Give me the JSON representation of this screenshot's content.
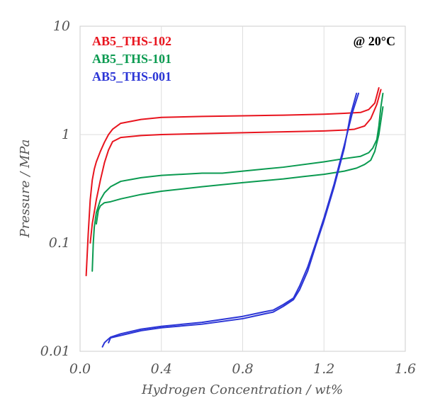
{
  "chart_data": {
    "type": "line",
    "title": "",
    "xlabel": "Hydrogen Concentration / wt%",
    "ylabel": "Pressure / MPa",
    "xlim": [
      0.0,
      1.6
    ],
    "ylim": [
      0.01,
      10
    ],
    "yscale": "log",
    "xticks": [
      "0.0",
      "0.4",
      "0.8",
      "1.2",
      "1.6"
    ],
    "yticks": [
      "0.01",
      "0.1",
      "1",
      "10"
    ],
    "grid": true,
    "legend_position": "top-left",
    "annotation": "@ 20°C",
    "series": [
      {
        "name": "AB5_THS-102",
        "color": "#e8141e",
        "curves": [
          {
            "x": [
              0.03,
              0.04,
              0.05,
              0.06,
              0.07,
              0.08,
              0.1,
              0.12,
              0.14,
              0.16,
              0.2,
              0.3,
              0.4,
              0.6,
              0.8,
              1.0,
              1.2,
              1.3,
              1.38,
              1.42,
              1.45,
              1.47
            ],
            "y": [
              0.05,
              0.12,
              0.25,
              0.38,
              0.48,
              0.56,
              0.7,
              0.85,
              1.0,
              1.12,
              1.27,
              1.38,
              1.44,
              1.47,
              1.49,
              1.51,
              1.54,
              1.57,
              1.6,
              1.7,
              1.95,
              2.7
            ]
          },
          {
            "x": [
              0.05,
              0.06,
              0.08,
              0.1,
              0.12,
              0.14,
              0.16,
              0.2,
              0.3,
              0.4,
              0.6,
              0.8,
              1.0,
              1.2,
              1.3,
              1.35,
              1.4,
              1.43,
              1.46,
              1.48
            ],
            "y": [
              0.1,
              0.15,
              0.25,
              0.38,
              0.55,
              0.72,
              0.86,
              0.94,
              0.98,
              1.0,
              1.02,
              1.04,
              1.06,
              1.08,
              1.1,
              1.12,
              1.2,
              1.4,
              1.9,
              2.6
            ]
          }
        ]
      },
      {
        "name": "AB5_THS-101",
        "color": "#0a9a50",
        "curves": [
          {
            "x": [
              0.06,
              0.065,
              0.07,
              0.08,
              0.1,
              0.12,
              0.15,
              0.2,
              0.3,
              0.4,
              0.6,
              0.7,
              0.8,
              1.0,
              1.2,
              1.3,
              1.38,
              1.42,
              1.44,
              1.46,
              1.47,
              1.48,
              1.49
            ],
            "y": [
              0.055,
              0.1,
              0.14,
              0.19,
              0.25,
              0.29,
              0.33,
              0.37,
              0.4,
              0.42,
              0.44,
              0.44,
              0.46,
              0.5,
              0.56,
              0.6,
              0.63,
              0.68,
              0.75,
              0.9,
              1.2,
              1.8,
              2.4
            ]
          },
          {
            "x": [
              0.08,
              0.09,
              0.1,
              0.12,
              0.15,
              0.2,
              0.3,
              0.4,
              0.6,
              0.8,
              1.0,
              1.1,
              1.2,
              1.3,
              1.36,
              1.4,
              1.43,
              1.45,
              1.47,
              1.49
            ],
            "y": [
              0.15,
              0.2,
              0.22,
              0.235,
              0.24,
              0.255,
              0.28,
              0.3,
              0.33,
              0.36,
              0.39,
              0.41,
              0.43,
              0.46,
              0.49,
              0.53,
              0.58,
              0.7,
              1.0,
              1.8
            ]
          }
        ]
      },
      {
        "name": "AB5_THS-001",
        "color": "#2b35d6",
        "curves": [
          {
            "x": [
              0.11,
              0.12,
              0.13,
              0.15,
              0.2,
              0.3,
              0.4,
              0.6,
              0.8,
              0.9,
              0.95,
              1.0,
              1.05,
              1.08,
              1.12,
              1.16,
              1.2,
              1.25,
              1.3,
              1.34,
              1.37
            ],
            "y": [
              0.011,
              0.012,
              0.0125,
              0.0135,
              0.0145,
              0.016,
              0.017,
              0.0185,
              0.021,
              0.023,
              0.024,
              0.027,
              0.031,
              0.04,
              0.06,
              0.1,
              0.17,
              0.35,
              0.8,
              1.6,
              2.4
            ]
          },
          {
            "x": [
              0.14,
              0.15,
              0.2,
              0.3,
              0.4,
              0.6,
              0.8,
              0.9,
              0.95,
              1.0,
              1.05,
              1.08,
              1.12,
              1.16,
              1.2,
              1.25,
              1.3,
              1.33,
              1.36
            ],
            "y": [
              0.012,
              0.0133,
              0.014,
              0.0155,
              0.0165,
              0.0178,
              0.02,
              0.022,
              0.023,
              0.026,
              0.03,
              0.037,
              0.055,
              0.095,
              0.16,
              0.33,
              0.75,
              1.5,
              2.4
            ]
          }
        ]
      }
    ]
  }
}
